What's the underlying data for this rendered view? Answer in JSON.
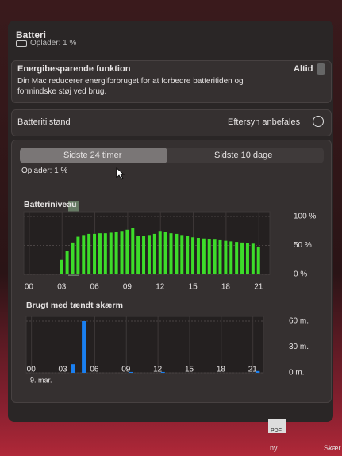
{
  "header": {
    "title": "Batteri",
    "status": "Oplader: 1 %"
  },
  "energy": {
    "title": "Energibesparende funktion",
    "value": "Altid",
    "description": "Din Mac reducerer energiforbruget for at forbedre batteritiden og formindske støj ved brug."
  },
  "health": {
    "label": "Batteritilstand",
    "value": "Eftersyn anbefales"
  },
  "tabs": [
    "Sidste 24 timer",
    "Sidste 10 dage"
  ],
  "charging": "Oplader: 1 %",
  "chart_data": [
    {
      "type": "bar",
      "title": "Batteriniveau",
      "color": "#3ddc2a",
      "grid": true,
      "x": [
        3,
        3.5,
        4,
        4.5,
        5,
        5.5,
        6,
        6.5,
        7,
        7.5,
        8,
        8.5,
        9,
        9.5,
        10,
        10.5,
        11,
        11.5,
        12,
        12.5,
        13,
        13.5,
        14,
        14.5,
        15,
        15.5,
        16,
        16.5,
        17,
        17.5,
        18,
        18.5,
        19,
        19.5,
        20,
        20.5,
        21
      ],
      "values": [
        25,
        40,
        55,
        65,
        68,
        70,
        70,
        71,
        71,
        72,
        73,
        75,
        77,
        80,
        66,
        67,
        68,
        70,
        75,
        73,
        71,
        70,
        68,
        66,
        64,
        63,
        62,
        61,
        60,
        59,
        58,
        57,
        56,
        55,
        54,
        53,
        48
      ],
      "xlim": [
        -0.5,
        22
      ],
      "xticks": [
        {
          "value": 0,
          "label": "00"
        },
        {
          "value": 3,
          "label": "03"
        },
        {
          "value": 6,
          "label": "06"
        },
        {
          "value": 9,
          "label": "09"
        },
        {
          "value": 12,
          "label": "12"
        },
        {
          "value": 15,
          "label": "15"
        },
        {
          "value": 18,
          "label": "18"
        },
        {
          "value": 21,
          "label": "21"
        }
      ],
      "ylim": [
        0,
        100
      ],
      "yticks": [
        {
          "value": 0,
          "label": "0 %"
        },
        {
          "value": 50,
          "label": "50 %"
        },
        {
          "value": 100,
          "label": "100 %"
        }
      ]
    },
    {
      "type": "bar",
      "title": "Brugt med tændt skærm",
      "color": "#1a7ff0",
      "grid": true,
      "date_label": "9. mar.",
      "x": [
        4,
        5,
        9.5,
        12.5,
        21.5
      ],
      "values": [
        10,
        60,
        1,
        1,
        2
      ],
      "xlim": [
        -0.5,
        22
      ],
      "xticks": [
        {
          "value": 0,
          "label": "00"
        },
        {
          "value": 3,
          "label": "03"
        },
        {
          "value": 6,
          "label": "06"
        },
        {
          "value": 9,
          "label": "09"
        },
        {
          "value": 12,
          "label": "12"
        },
        {
          "value": 15,
          "label": "15"
        },
        {
          "value": 18,
          "label": "18"
        },
        {
          "value": 21,
          "label": "21"
        }
      ],
      "ylim": [
        0,
        60
      ],
      "yticks": [
        {
          "value": 0,
          "label": "0 m."
        },
        {
          "value": 30,
          "label": "30 m."
        },
        {
          "value": 60,
          "label": "60 m."
        }
      ]
    }
  ],
  "desktop": [
    "PDF",
    "ny",
    "Skær"
  ]
}
